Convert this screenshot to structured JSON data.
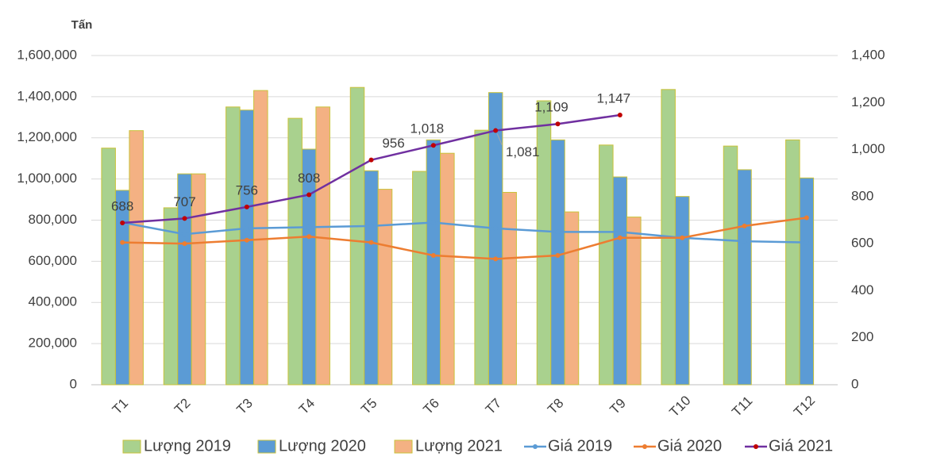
{
  "chart_data": {
    "type": "bar-line",
    "y_label": "Tấn",
    "categories": [
      "T1",
      "T2",
      "T3",
      "T4",
      "T5",
      "T6",
      "T7",
      "T8",
      "T9",
      "T10",
      "T11",
      "T12"
    ],
    "series": [
      {
        "name": "Lượng 2019",
        "type": "bar",
        "color": "#a9d18e",
        "values": [
          1150000,
          860000,
          1350000,
          1295000,
          1445000,
          1037000,
          1237000,
          1380000,
          1165000,
          1435000,
          1160000,
          1190000
        ]
      },
      {
        "name": "Lượng 2020",
        "type": "bar",
        "color": "#5b9bd5",
        "values": [
          945000,
          1025000,
          1335000,
          1145000,
          1040000,
          1190000,
          1420000,
          1190000,
          1010000,
          915000,
          1045000,
          1005000
        ]
      },
      {
        "name": "Lượng 2021",
        "type": "bar",
        "color": "#f4b183",
        "values": [
          1235000,
          1025000,
          1430000,
          1350000,
          950000,
          1125000,
          935000,
          840000,
          815000,
          null,
          null,
          null
        ]
      },
      {
        "name": "Giá 2019",
        "type": "line",
        "axis": "y2",
        "color": "#5b9bd5",
        "values": [
          690,
          640,
          665,
          670,
          675,
          690,
          665,
          650,
          650,
          625,
          610,
          605
        ]
      },
      {
        "name": "Giá 2020",
        "type": "line",
        "axis": "y2",
        "color": "#ed7d31",
        "values": [
          605,
          600,
          615,
          630,
          605,
          550,
          535,
          550,
          625,
          625,
          675,
          710
        ]
      },
      {
        "name": "Giá 2021",
        "type": "line",
        "axis": "y2",
        "color": "#7030a0",
        "marker_color": "#c00000",
        "values": [
          688,
          707,
          756,
          808,
          956,
          1018,
          1081,
          1109,
          1147,
          null,
          null,
          null
        ],
        "value_labels": [
          "688",
          "707",
          "756",
          "808",
          "956",
          "1,018",
          "1,081",
          "1,109",
          "1,147",
          null,
          null,
          null
        ]
      }
    ],
    "ylim": [
      0,
      1600000
    ],
    "yticks": [
      0,
      {
        "value": 200000,
        "label": "200,000"
      },
      {
        "value": 400000,
        "label": "400,000"
      },
      {
        "value": 600000,
        "label": "600,000"
      },
      {
        "value": 800000,
        "label": "800,000"
      },
      {
        "value": 1000000,
        "label": "1,000,000"
      },
      {
        "value": 1200000,
        "label": "1,200,000"
      },
      {
        "value": 1400000,
        "label": "1,400,000"
      },
      {
        "value": 1600000,
        "label": "1,600,000"
      }
    ],
    "y2lim": [
      0,
      1400
    ],
    "y2ticks": [
      0,
      200,
      400,
      600,
      800,
      {
        "value": 1000,
        "label": "1,000"
      },
      {
        "value": 1200,
        "label": "1,200"
      },
      {
        "value": 1400,
        "label": "1,400"
      }
    ],
    "grid": true
  }
}
